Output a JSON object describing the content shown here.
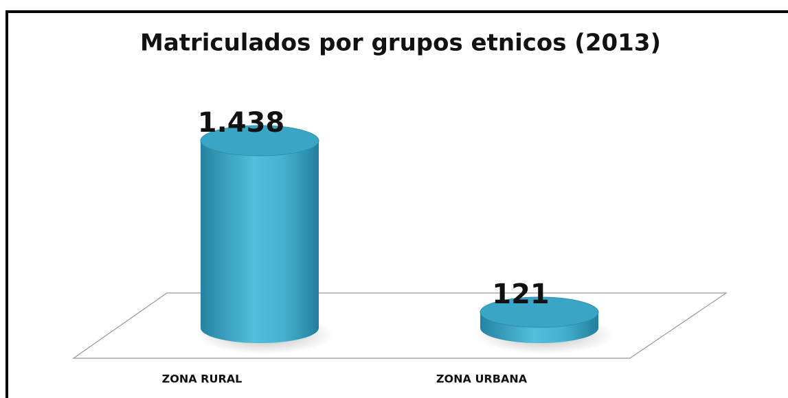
{
  "chart_data": {
    "type": "bar3d",
    "title": "Matriculados por grupos etnicos (2013)",
    "categories": [
      "ZONA RURAL",
      "ZONA URBANA"
    ],
    "values": [
      1438,
      121
    ],
    "value_labels": [
      "1.438",
      "121"
    ],
    "color": "#3aa6c6"
  }
}
